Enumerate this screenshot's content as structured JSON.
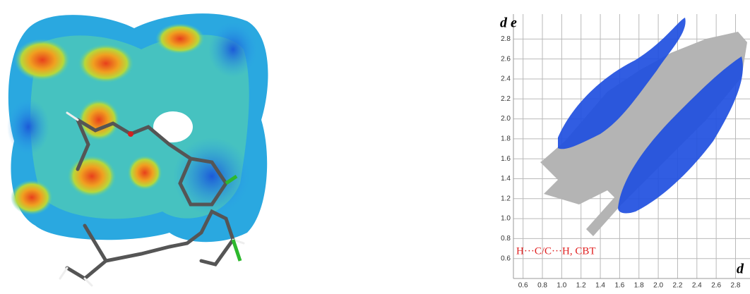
{
  "chart_data": {
    "type": "scatter",
    "xlabel": "d",
    "ylabel": "d e",
    "annotation": "H···C/C···H, CBT",
    "xlim": [
      0.5,
      2.95
    ],
    "ylim": [
      0.4,
      3.05
    ],
    "xticks": [
      0.6,
      0.8,
      {
        "value": 1.0,
        "label": "1.0"
      },
      1.2,
      1.4,
      1.6,
      1.8,
      {
        "value": 2.0,
        "label": "2.0"
      },
      2.2,
      2.4,
      2.6,
      2.8
    ],
    "yticks": [
      0.6,
      0.8,
      {
        "value": 1.0,
        "label": "1.0"
      },
      1.2,
      1.4,
      1.6,
      1.8,
      {
        "value": 2.0,
        "label": "2.0"
      },
      2.2,
      2.4,
      2.6,
      2.8
    ],
    "grid": true
  }
}
